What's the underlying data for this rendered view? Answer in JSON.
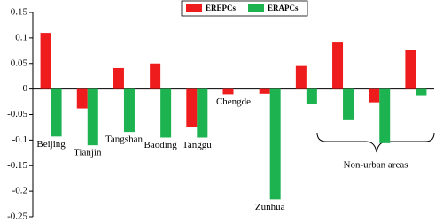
{
  "chart_data": {
    "type": "bar",
    "categories": [
      "Beijing",
      "Tianjin",
      "Tangshan",
      "Baoding",
      "Tanggu",
      "Chengde",
      "Zunhua",
      null,
      null,
      null,
      null
    ],
    "series": [
      {
        "name": "EREPCs",
        "color": "#ee1c1c",
        "values": [
          0.11,
          -0.038,
          0.041,
          0.05,
          -0.074,
          -0.01,
          -0.009,
          0.045,
          0.091,
          -0.026,
          0.076
        ]
      },
      {
        "name": "ERAPCs",
        "color": "#1db350",
        "values": [
          -0.093,
          -0.11,
          -0.084,
          -0.095,
          -0.095,
          null,
          -0.216,
          -0.029,
          -0.061,
          -0.106,
          -0.012
        ]
      }
    ],
    "ylim": [
      -0.25,
      0.15
    ],
    "yticks": [
      0.15,
      0.1,
      0.05,
      0,
      -0.05,
      -0.1,
      -0.15,
      -0.2,
      -0.25
    ],
    "legend": "top",
    "annotation": "Non-urban areas"
  }
}
